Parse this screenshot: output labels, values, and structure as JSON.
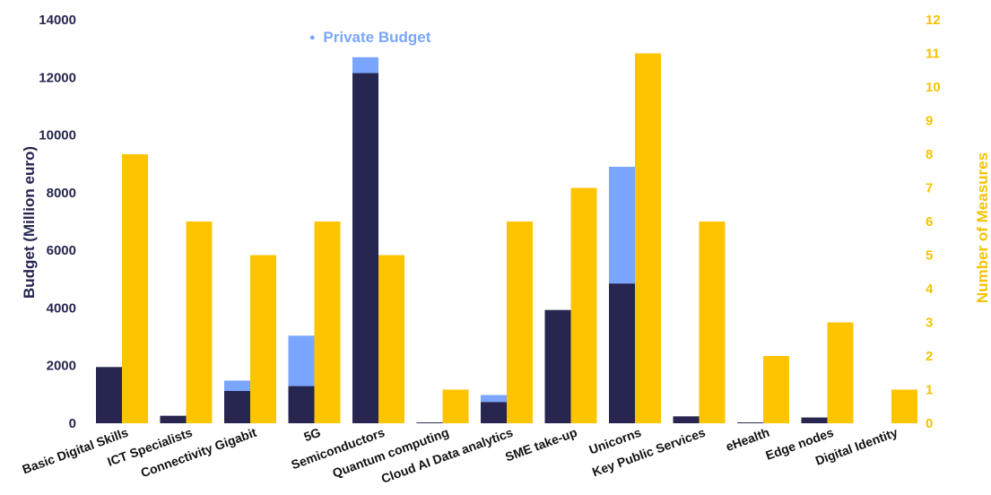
{
  "chart_data": {
    "type": "bar",
    "categories": [
      "Basic Digital Skills",
      "ICT Specialists",
      "Connectivity Gigabit",
      "5G",
      "Semiconductors",
      "Quantum computing",
      "Cloud AI Data analytics",
      "SME take-up",
      "Unicorns",
      "Key Public Services",
      "eHealth",
      "Edge nodes",
      "Digital Identity"
    ],
    "series": [
      {
        "axis": "left",
        "stack": "budget",
        "color": "#262650",
        "values": [
          1950,
          260,
          1120,
          1290,
          12150,
          30,
          740,
          3930,
          4850,
          240,
          30,
          200,
          0
        ]
      },
      {
        "name": "Private Budget",
        "axis": "left",
        "stack": "budget",
        "color": "#7aa6ff",
        "values": [
          0,
          0,
          360,
          1750,
          550,
          0,
          240,
          0,
          4050,
          0,
          0,
          0,
          0
        ]
      },
      {
        "axis": "right",
        "color": "#ffc400",
        "values": [
          8,
          6,
          5,
          6,
          5,
          1,
          6,
          7,
          11,
          6,
          2,
          3,
          1
        ]
      }
    ],
    "ylabel": "Budget (Million euro)",
    "y2label": "Number of Measures",
    "ylim": [
      0,
      14000
    ],
    "y2lim": [
      0,
      12
    ],
    "yticks": [
      "0",
      "2000",
      "4000",
      "6000",
      "8000",
      "10000",
      "12000",
      "14000"
    ],
    "y2ticks": [
      "0",
      "1",
      "2",
      "3",
      "4",
      "5",
      "6",
      "7",
      "8",
      "9",
      "10",
      "11",
      "12"
    ],
    "legend": {
      "entries": [
        "Private Budget"
      ],
      "placement": "top-center",
      "marker": "●"
    },
    "grid": false
  }
}
